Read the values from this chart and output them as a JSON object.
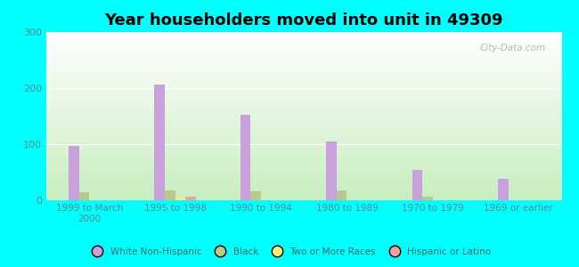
{
  "title": "Year householders moved into unit in 49309",
  "categories": [
    "1999 to March\n2000",
    "1995 to 1998",
    "1990 to 1994",
    "1980 to 1989",
    "1970 to 1979",
    "1969 or earlier"
  ],
  "series": {
    "White Non-Hispanic": [
      97,
      206,
      152,
      105,
      54,
      38
    ],
    "Black": [
      14,
      18,
      16,
      18,
      7,
      0
    ],
    "Two or More Races": [
      0,
      5,
      0,
      0,
      0,
      0
    ],
    "Hispanic or Latino": [
      0,
      7,
      0,
      0,
      0,
      0
    ]
  },
  "colors": {
    "White Non-Hispanic": "#c9a0dc",
    "Black": "#b8c98a",
    "Two or More Races": "#f5f07a",
    "Hispanic or Latino": "#f0a0a0"
  },
  "ylim": [
    0,
    300
  ],
  "yticks": [
    0,
    100,
    200,
    300
  ],
  "bg_top_color": "#ffffff",
  "bg_bottom_color": "#c8eec0",
  "outer_background": "#00ffff",
  "bar_width": 0.12,
  "watermark": "City-Data.com",
  "tick_color": "#5a8a8a",
  "legend_label_color": "#3a6a6a"
}
